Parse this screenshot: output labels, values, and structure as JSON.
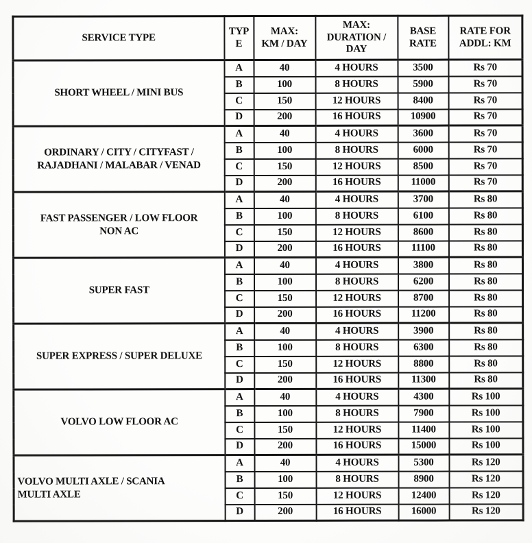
{
  "table": {
    "headers": {
      "service_type": "SERVICE TYPE",
      "type": "TYP\nE",
      "max_km_day": "MAX:\nKM / DAY",
      "max_duration_day": "MAX:\nDURATION /\nDAY",
      "base_rate": "BASE\nRATE",
      "rate_addl_km": "RATE FOR\nADDL: KM"
    },
    "groups": [
      {
        "service": "SHORT WHEEL / MINI BUS",
        "align": "center",
        "rows": [
          {
            "type": "A",
            "max_km_day": "40",
            "max_duration_day": "4 HOURS",
            "base_rate": "3500",
            "rate_addl_km": "Rs 70"
          },
          {
            "type": "B",
            "max_km_day": "100",
            "max_duration_day": "8 HOURS",
            "base_rate": "5900",
            "rate_addl_km": "Rs 70"
          },
          {
            "type": "C",
            "max_km_day": "150",
            "max_duration_day": "12 HOURS",
            "base_rate": "8400",
            "rate_addl_km": "Rs 70"
          },
          {
            "type": "D",
            "max_km_day": "200",
            "max_duration_day": "16 HOURS",
            "base_rate": "10900",
            "rate_addl_km": "Rs 70"
          }
        ]
      },
      {
        "service": "ORDINARY / CITY / CITYFAST /\nRAJADHANI / MALABAR / VENAD",
        "align": "center",
        "rows": [
          {
            "type": "A",
            "max_km_day": "40",
            "max_duration_day": "4 HOURS",
            "base_rate": "3600",
            "rate_addl_km": "Rs 70"
          },
          {
            "type": "B",
            "max_km_day": "100",
            "max_duration_day": "8 HOURS",
            "base_rate": "6000",
            "rate_addl_km": "Rs 70"
          },
          {
            "type": "C",
            "max_km_day": "150",
            "max_duration_day": "12 HOURS",
            "base_rate": "8500",
            "rate_addl_km": "Rs 70"
          },
          {
            "type": "D",
            "max_km_day": "200",
            "max_duration_day": "16 HOURS",
            "base_rate": "11000",
            "rate_addl_km": "Rs 70"
          }
        ]
      },
      {
        "service": "FAST PASSENGER / LOW FLOOR\nNON AC",
        "align": "center",
        "rows": [
          {
            "type": "A",
            "max_km_day": "40",
            "max_duration_day": "4 HOURS",
            "base_rate": "3700",
            "rate_addl_km": "Rs 80"
          },
          {
            "type": "B",
            "max_km_day": "100",
            "max_duration_day": "8 HOURS",
            "base_rate": "6100",
            "rate_addl_km": "Rs 80"
          },
          {
            "type": "C",
            "max_km_day": "150",
            "max_duration_day": "12 HOURS",
            "base_rate": "8600",
            "rate_addl_km": "Rs 80"
          },
          {
            "type": "D",
            "max_km_day": "200",
            "max_duration_day": "16 HOURS",
            "base_rate": "11100",
            "rate_addl_km": "Rs 80"
          }
        ]
      },
      {
        "service": "SUPER FAST",
        "align": "center",
        "rows": [
          {
            "type": "A",
            "max_km_day": "40",
            "max_duration_day": "4 HOURS",
            "base_rate": "3800",
            "rate_addl_km": "Rs 80"
          },
          {
            "type": "B",
            "max_km_day": "100",
            "max_duration_day": "8 HOURS",
            "base_rate": "6200",
            "rate_addl_km": "Rs 80"
          },
          {
            "type": "C",
            "max_km_day": "150",
            "max_duration_day": "12 HOURS",
            "base_rate": "8700",
            "rate_addl_km": "Rs 80"
          },
          {
            "type": "D",
            "max_km_day": "200",
            "max_duration_day": "16 HOURS",
            "base_rate": "11200",
            "rate_addl_km": "Rs 80"
          }
        ]
      },
      {
        "service": "SUPER EXPRESS / SUPER DELUXE",
        "align": "center",
        "rows": [
          {
            "type": "A",
            "max_km_day": "40",
            "max_duration_day": "4 HOURS",
            "base_rate": "3900",
            "rate_addl_km": "Rs 80"
          },
          {
            "type": "B",
            "max_km_day": "100",
            "max_duration_day": "8 HOURS",
            "base_rate": "6300",
            "rate_addl_km": "Rs 80"
          },
          {
            "type": "C",
            "max_km_day": "150",
            "max_duration_day": "12 HOURS",
            "base_rate": "8800",
            "rate_addl_km": "Rs 80"
          },
          {
            "type": "D",
            "max_km_day": "200",
            "max_duration_day": "16 HOURS",
            "base_rate": "11300",
            "rate_addl_km": "Rs 80"
          }
        ]
      },
      {
        "service": "VOLVO LOW FLOOR AC",
        "align": "center",
        "rows": [
          {
            "type": "A",
            "max_km_day": "40",
            "max_duration_day": "4 HOURS",
            "base_rate": "4300",
            "rate_addl_km": "Rs 100"
          },
          {
            "type": "B",
            "max_km_day": "100",
            "max_duration_day": "8 HOURS",
            "base_rate": "7900",
            "rate_addl_km": "Rs 100"
          },
          {
            "type": "C",
            "max_km_day": "150",
            "max_duration_day": "12 HOURS",
            "base_rate": "11400",
            "rate_addl_km": "Rs 100"
          },
          {
            "type": "D",
            "max_km_day": "200",
            "max_duration_day": "16 HOURS",
            "base_rate": "15000",
            "rate_addl_km": "Rs 100"
          }
        ]
      },
      {
        "service": "VOLVO MULTI AXLE / SCANIA\nMULTI AXLE",
        "align": "left",
        "rows": [
          {
            "type": "A",
            "max_km_day": "40",
            "max_duration_day": "4 HOURS",
            "base_rate": "5300",
            "rate_addl_km": "Rs 120"
          },
          {
            "type": "B",
            "max_km_day": "100",
            "max_duration_day": "8 HOURS",
            "base_rate": "8900",
            "rate_addl_km": "Rs 120"
          },
          {
            "type": "C",
            "max_km_day": "150",
            "max_duration_day": "12 HOURS",
            "base_rate": "12400",
            "rate_addl_km": "Rs 120"
          },
          {
            "type": "D",
            "max_km_day": "200",
            "max_duration_day": "16 HOURS",
            "base_rate": "16000",
            "rate_addl_km": "Rs 120"
          }
        ]
      }
    ],
    "colors": {
      "ink": "#121212",
      "paper": "#fdfdfc"
    }
  }
}
